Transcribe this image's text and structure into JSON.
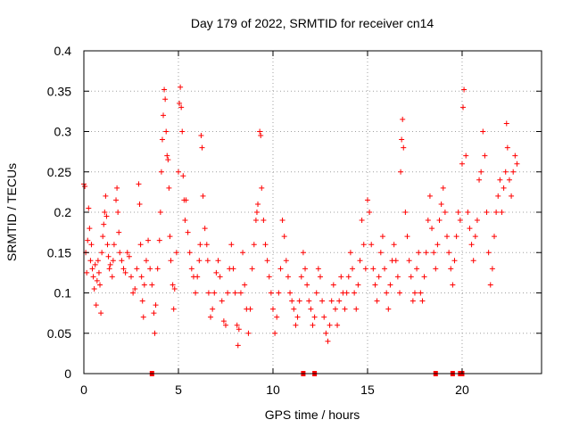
{
  "chart_data": {
    "type": "scatter",
    "title": "Day 179 of 2022, SRMTID for receiver cn14",
    "xlabel": "GPS time / hours",
    "ylabel": "SRMTID / TECUs",
    "xlim": [
      0,
      24.2
    ],
    "ylim": [
      0,
      0.4
    ],
    "xticks": [
      0,
      5,
      10,
      15,
      20
    ],
    "xtick_labels": [
      "0",
      "5",
      "10",
      "15",
      "20"
    ],
    "yticks": [
      0,
      0.05,
      0.1,
      0.15,
      0.2,
      0.25,
      0.3,
      0.35,
      0.4
    ],
    "ytick_labels": [
      "0",
      "0.05",
      "0.1",
      "0.15",
      "0.2",
      "0.25",
      "0.3",
      "0.35",
      "0.4"
    ],
    "grid": true,
    "marker": "plus",
    "color": "#ff0000",
    "series": [
      {
        "name": "SRMTID",
        "points": [
          [
            0.0,
            0.235
          ],
          [
            0.05,
            0.232
          ],
          [
            0.1,
            0.15
          ],
          [
            0.15,
            0.125
          ],
          [
            0.2,
            0.165
          ],
          [
            0.25,
            0.205
          ],
          [
            0.3,
            0.18
          ],
          [
            0.35,
            0.14
          ],
          [
            0.4,
            0.16
          ],
          [
            0.45,
            0.13
          ],
          [
            0.5,
            0.12
          ],
          [
            0.55,
            0.105
          ],
          [
            0.6,
            0.135
          ],
          [
            0.65,
            0.085
          ],
          [
            0.7,
            0.115
          ],
          [
            0.75,
            0.14
          ],
          [
            0.8,
            0.125
          ],
          [
            0.85,
            0.11
          ],
          [
            0.9,
            0.075
          ],
          [
            0.95,
            0.15
          ],
          [
            1.0,
            0.17
          ],
          [
            1.05,
            0.185
          ],
          [
            1.1,
            0.2
          ],
          [
            1.15,
            0.22
          ],
          [
            1.2,
            0.195
          ],
          [
            1.25,
            0.16
          ],
          [
            1.3,
            0.145
          ],
          [
            1.35,
            0.13
          ],
          [
            1.4,
            0.135
          ],
          [
            1.5,
            0.12
          ],
          [
            1.55,
            0.14
          ],
          [
            1.6,
            0.16
          ],
          [
            1.7,
            0.215
          ],
          [
            1.75,
            0.23
          ],
          [
            1.8,
            0.2
          ],
          [
            1.85,
            0.175
          ],
          [
            1.9,
            0.15
          ],
          [
            2.0,
            0.14
          ],
          [
            2.1,
            0.13
          ],
          [
            2.2,
            0.125
          ],
          [
            2.3,
            0.15
          ],
          [
            2.4,
            0.145
          ],
          [
            2.5,
            0.12
          ],
          [
            2.6,
            0.1
          ],
          [
            2.7,
            0.105
          ],
          [
            2.8,
            0.13
          ],
          [
            2.9,
            0.235
          ],
          [
            2.95,
            0.21
          ],
          [
            3.0,
            0.16
          ],
          [
            3.05,
            0.12
          ],
          [
            3.1,
            0.09
          ],
          [
            3.15,
            0.07
          ],
          [
            3.2,
            0.11
          ],
          [
            3.3,
            0.14
          ],
          [
            3.4,
            0.165
          ],
          [
            3.5,
            0.13
          ],
          [
            3.6,
            0.11
          ],
          [
            3.7,
            0.075
          ],
          [
            3.75,
            0.05
          ],
          [
            3.8,
            0.085
          ],
          [
            3.9,
            0.13
          ],
          [
            4.0,
            0.165
          ],
          [
            4.05,
            0.2
          ],
          [
            4.1,
            0.25
          ],
          [
            4.15,
            0.29
          ],
          [
            4.2,
            0.32
          ],
          [
            4.25,
            0.352
          ],
          [
            4.3,
            0.34
          ],
          [
            4.35,
            0.3
          ],
          [
            4.4,
            0.27
          ],
          [
            4.45,
            0.265
          ],
          [
            4.5,
            0.23
          ],
          [
            4.55,
            0.17
          ],
          [
            4.6,
            0.14
          ],
          [
            4.7,
            0.11
          ],
          [
            4.75,
            0.08
          ],
          [
            4.8,
            0.105
          ],
          [
            4.9,
            0.15
          ],
          [
            5.0,
            0.25
          ],
          [
            5.05,
            0.335
          ],
          [
            5.1,
            0.355
          ],
          [
            5.15,
            0.33
          ],
          [
            5.2,
            0.3
          ],
          [
            5.25,
            0.245
          ],
          [
            5.3,
            0.215
          ],
          [
            5.35,
            0.19
          ],
          [
            5.4,
            0.215
          ],
          [
            5.5,
            0.175
          ],
          [
            5.6,
            0.15
          ],
          [
            5.7,
            0.13
          ],
          [
            5.8,
            0.12
          ],
          [
            5.9,
            0.1
          ],
          [
            6.0,
            0.12
          ],
          [
            6.1,
            0.14
          ],
          [
            6.15,
            0.16
          ],
          [
            6.2,
            0.295
          ],
          [
            6.25,
            0.28
          ],
          [
            6.3,
            0.22
          ],
          [
            6.4,
            0.18
          ],
          [
            6.5,
            0.16
          ],
          [
            6.55,
            0.14
          ],
          [
            6.6,
            0.1
          ],
          [
            6.7,
            0.07
          ],
          [
            6.8,
            0.08
          ],
          [
            6.9,
            0.1
          ],
          [
            7.0,
            0.125
          ],
          [
            7.1,
            0.14
          ],
          [
            7.2,
            0.12
          ],
          [
            7.3,
            0.09
          ],
          [
            7.4,
            0.065
          ],
          [
            7.5,
            0.06
          ],
          [
            7.6,
            0.1
          ],
          [
            7.7,
            0.13
          ],
          [
            7.8,
            0.16
          ],
          [
            7.9,
            0.13
          ],
          [
            8.0,
            0.1
          ],
          [
            8.1,
            0.06
          ],
          [
            8.15,
            0.035
          ],
          [
            8.2,
            0.055
          ],
          [
            8.3,
            0.1
          ],
          [
            8.4,
            0.15
          ],
          [
            8.5,
            0.11
          ],
          [
            8.6,
            0.08
          ],
          [
            8.7,
            0.05
          ],
          [
            8.8,
            0.08
          ],
          [
            8.9,
            0.13
          ],
          [
            9.0,
            0.16
          ],
          [
            9.1,
            0.19
          ],
          [
            9.15,
            0.2
          ],
          [
            9.2,
            0.21
          ],
          [
            9.3,
            0.3
          ],
          [
            9.35,
            0.295
          ],
          [
            9.4,
            0.23
          ],
          [
            9.5,
            0.19
          ],
          [
            9.6,
            0.16
          ],
          [
            9.7,
            0.14
          ],
          [
            9.8,
            0.12
          ],
          [
            9.9,
            0.1
          ],
          [
            10.0,
            0.08
          ],
          [
            10.1,
            0.05
          ],
          [
            10.2,
            0.07
          ],
          [
            10.3,
            0.1
          ],
          [
            10.4,
            0.13
          ],
          [
            10.5,
            0.19
          ],
          [
            10.6,
            0.17
          ],
          [
            10.7,
            0.14
          ],
          [
            10.8,
            0.12
          ],
          [
            10.9,
            0.1
          ],
          [
            11.0,
            0.09
          ],
          [
            11.1,
            0.08
          ],
          [
            11.2,
            0.06
          ],
          [
            11.3,
            0.07
          ],
          [
            11.4,
            0.09
          ],
          [
            11.5,
            0.12
          ],
          [
            11.6,
            0.15
          ],
          [
            11.7,
            0.13
          ],
          [
            11.8,
            0.11
          ],
          [
            11.9,
            0.09
          ],
          [
            12.0,
            0.08
          ],
          [
            12.1,
            0.06
          ],
          [
            12.2,
            0.07
          ],
          [
            12.3,
            0.1
          ],
          [
            12.4,
            0.13
          ],
          [
            12.5,
            0.12
          ],
          [
            12.6,
            0.09
          ],
          [
            12.7,
            0.07
          ],
          [
            12.8,
            0.05
          ],
          [
            12.9,
            0.04
          ],
          [
            13.0,
            0.06
          ],
          [
            13.1,
            0.09
          ],
          [
            13.2,
            0.11
          ],
          [
            13.3,
            0.08
          ],
          [
            13.4,
            0.06
          ],
          [
            13.5,
            0.09
          ],
          [
            13.6,
            0.12
          ],
          [
            13.7,
            0.1
          ],
          [
            13.8,
            0.08
          ],
          [
            13.9,
            0.1
          ],
          [
            14.0,
            0.12
          ],
          [
            14.1,
            0.15
          ],
          [
            14.2,
            0.13
          ],
          [
            14.3,
            0.1
          ],
          [
            14.4,
            0.08
          ],
          [
            14.5,
            0.11
          ],
          [
            14.6,
            0.14
          ],
          [
            14.7,
            0.19
          ],
          [
            14.8,
            0.16
          ],
          [
            14.9,
            0.13
          ],
          [
            15.0,
            0.215
          ],
          [
            15.1,
            0.2
          ],
          [
            15.2,
            0.16
          ],
          [
            15.3,
            0.13
          ],
          [
            15.4,
            0.11
          ],
          [
            15.5,
            0.09
          ],
          [
            15.6,
            0.12
          ],
          [
            15.7,
            0.15
          ],
          [
            15.8,
            0.17
          ],
          [
            15.9,
            0.13
          ],
          [
            16.0,
            0.1
          ],
          [
            16.1,
            0.08
          ],
          [
            16.2,
            0.11
          ],
          [
            16.3,
            0.14
          ],
          [
            16.4,
            0.16
          ],
          [
            16.5,
            0.14
          ],
          [
            16.6,
            0.12
          ],
          [
            16.7,
            0.1
          ],
          [
            16.75,
            0.25
          ],
          [
            16.8,
            0.29
          ],
          [
            16.85,
            0.315
          ],
          [
            16.9,
            0.28
          ],
          [
            17.0,
            0.2
          ],
          [
            17.1,
            0.17
          ],
          [
            17.2,
            0.14
          ],
          [
            17.3,
            0.12
          ],
          [
            17.4,
            0.09
          ],
          [
            17.5,
            0.1
          ],
          [
            17.6,
            0.13
          ],
          [
            17.7,
            0.15
          ],
          [
            17.8,
            0.1
          ],
          [
            17.9,
            0.09
          ],
          [
            18.0,
            0.12
          ],
          [
            18.1,
            0.15
          ],
          [
            18.2,
            0.19
          ],
          [
            18.3,
            0.22
          ],
          [
            18.4,
            0.18
          ],
          [
            18.5,
            0.15
          ],
          [
            18.6,
            0.13
          ],
          [
            18.7,
            0.16
          ],
          [
            18.8,
            0.19
          ],
          [
            18.9,
            0.21
          ],
          [
            19.0,
            0.23
          ],
          [
            19.1,
            0.2
          ],
          [
            19.2,
            0.17
          ],
          [
            19.3,
            0.15
          ],
          [
            19.4,
            0.13
          ],
          [
            19.5,
            0.11
          ],
          [
            19.6,
            0.14
          ],
          [
            19.7,
            0.17
          ],
          [
            19.8,
            0.2
          ],
          [
            19.9,
            0.19
          ],
          [
            20.0,
            0.26
          ],
          [
            20.05,
            0.33
          ],
          [
            20.1,
            0.352
          ],
          [
            20.2,
            0.27
          ],
          [
            20.3,
            0.2
          ],
          [
            20.4,
            0.18
          ],
          [
            20.5,
            0.16
          ],
          [
            20.6,
            0.14
          ],
          [
            20.7,
            0.17
          ],
          [
            20.8,
            0.19
          ],
          [
            20.9,
            0.24
          ],
          [
            21.0,
            0.25
          ],
          [
            21.1,
            0.3
          ],
          [
            21.2,
            0.27
          ],
          [
            21.3,
            0.2
          ],
          [
            21.4,
            0.15
          ],
          [
            21.5,
            0.11
          ],
          [
            21.6,
            0.13
          ],
          [
            21.7,
            0.17
          ],
          [
            21.8,
            0.2
          ],
          [
            21.9,
            0.22
          ],
          [
            22.0,
            0.24
          ],
          [
            22.1,
            0.2
          ],
          [
            22.2,
            0.23
          ],
          [
            22.3,
            0.25
          ],
          [
            22.35,
            0.31
          ],
          [
            22.4,
            0.28
          ],
          [
            22.5,
            0.24
          ],
          [
            22.6,
            0.22
          ],
          [
            22.7,
            0.25
          ],
          [
            22.8,
            0.27
          ],
          [
            22.9,
            0.26
          ]
        ]
      }
    ],
    "zero_markers_x": [
      3.6,
      11.6,
      12.2,
      18.6,
      19.5,
      19.9,
      20.0
    ]
  }
}
